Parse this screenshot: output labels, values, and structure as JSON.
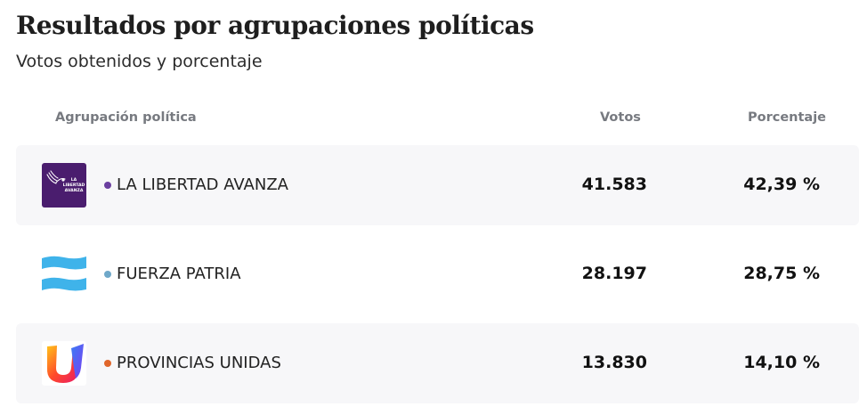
{
  "title": "Resultados por agrupaciones políticas",
  "subtitle": "Votos obtenidos y porcentaje",
  "table": {
    "headers": {
      "party": "Agrupación política",
      "votes": "Votos",
      "percentage": "Porcentaje"
    },
    "rows": [
      {
        "name": "LA LIBERTAD AVANZA",
        "votes": "41.583",
        "percentage": "42,39 %",
        "dot_color": "#6b3fa0",
        "logo": "la-libertad-avanza-logo",
        "logo_text": [
          "LA",
          "LIBERTAD",
          "AVANZA"
        ]
      },
      {
        "name": "FUERZA PATRIA",
        "votes": "28.197",
        "percentage": "28,75 %",
        "dot_color": "#6fa8c9",
        "logo": "fuerza-patria-logo"
      },
      {
        "name": "PROVINCIAS UNIDAS",
        "votes": "13.830",
        "percentage": "14,10 %",
        "dot_color": "#e0662b",
        "logo": "provincias-unidas-logo"
      }
    ]
  }
}
